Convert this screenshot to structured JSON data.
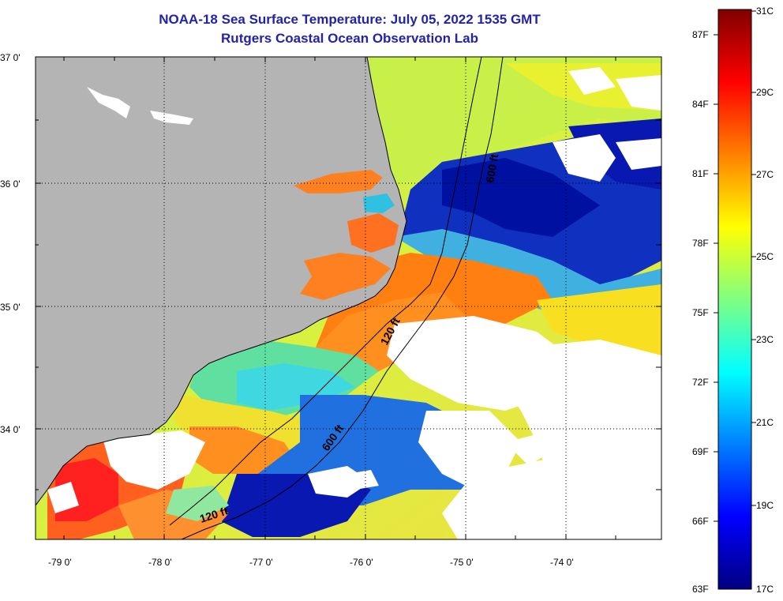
{
  "header": {
    "title": "NOAA-18 Sea Surface Temperature:  July 05, 2022 1535 GMT",
    "subtitle": "Rutgers Coastal Ocean Observation Lab"
  },
  "map": {
    "lat_labels": [
      "37 0'",
      "36 0'",
      "35 0'",
      "34 0'"
    ],
    "lon_labels": [
      "-79 0'",
      "-78 0'",
      "-77 0'",
      "-76 0'",
      "-75 0'",
      "-74 0'"
    ],
    "contours": [
      {
        "label": "600 ft"
      },
      {
        "label": "120 ft"
      },
      {
        "label": "600 ft"
      },
      {
        "label": "120 ft"
      }
    ],
    "land_color": "#b4b4b4",
    "cloud_color": "#ffffff"
  },
  "colorbar": {
    "celsius_labels": [
      "31C",
      "29C",
      "27C",
      "25C",
      "23C",
      "21C",
      "19C",
      "17C"
    ],
    "fahrenheit_labels": [
      "87F",
      "84F",
      "81F",
      "78F",
      "75F",
      "72F",
      "69F",
      "66F",
      "63F"
    ],
    "colors": [
      "#800000",
      "#ff0000",
      "#ff8000",
      "#ffff00",
      "#80ff80",
      "#00ffff",
      "#0080ff",
      "#0000ff",
      "#000080"
    ]
  }
}
